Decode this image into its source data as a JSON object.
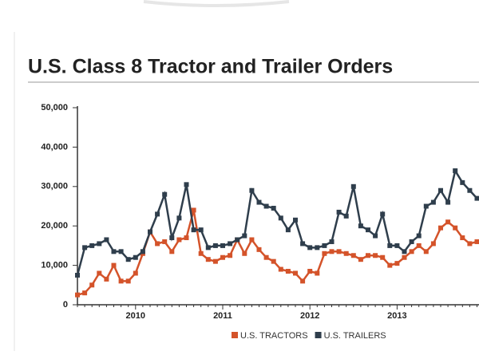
{
  "chart_data": {
    "type": "line",
    "title": "U.S. Class 8 Tractor and Trailer Orders",
    "categories": [
      null,
      null,
      null,
      null,
      null,
      null,
      null,
      null,
      "2010",
      null,
      null,
      null,
      null,
      null,
      null,
      null,
      null,
      null,
      null,
      null,
      "2011",
      null,
      null,
      null,
      null,
      null,
      null,
      null,
      null,
      null,
      null,
      null,
      "2012",
      null,
      null,
      null,
      null,
      null,
      null,
      null,
      null,
      null,
      null,
      null,
      "2013",
      null,
      null,
      null,
      null,
      null,
      null,
      null,
      null,
      null,
      null,
      null
    ],
    "series": [
      {
        "name": "U.S. TRACTORS",
        "color": "#d4532a",
        "values": [
          2500,
          3000,
          5000,
          8000,
          6500,
          10000,
          6000,
          6000,
          8000,
          13000,
          18500,
          15500,
          16000,
          13500,
          16500,
          17000,
          24000,
          13000,
          11500,
          11000,
          12000,
          12500,
          16500,
          13000,
          16500,
          14000,
          12000,
          11000,
          9000,
          8500,
          8000,
          6000,
          8500,
          8000,
          13000,
          13500,
          13500,
          13000,
          12500,
          11500,
          12500,
          12500,
          12000,
          10000,
          10500,
          12000,
          13500,
          15000,
          13500,
          15500,
          19500,
          21000,
          19500,
          17000,
          15500,
          16000
        ]
      },
      {
        "name": "U.S. TRAILERS",
        "color": "#2f3e4c",
        "values": [
          7500,
          14500,
          15000,
          15500,
          16500,
          13500,
          13500,
          11500,
          12000,
          13500,
          18500,
          23000,
          28000,
          17000,
          22000,
          30500,
          19000,
          19000,
          14500,
          15000,
          15000,
          15500,
          16500,
          17500,
          29000,
          26000,
          25000,
          24500,
          22000,
          19000,
          21500,
          15500,
          14500,
          14500,
          15000,
          16000,
          23500,
          22500,
          30000,
          20000,
          19000,
          17500,
          23000,
          15000,
          15000,
          13500,
          16000,
          17500,
          25000,
          26000,
          29000,
          26000,
          34000,
          31000,
          29000,
          27000
        ]
      }
    ],
    "ylim": [
      0,
      50000
    ],
    "yticks": [
      0,
      {
        "value": 10000,
        "label": "10,000"
      },
      {
        "value": 20000,
        "label": "20,000"
      },
      {
        "value": 30000,
        "label": "30,000"
      },
      {
        "value": 40000,
        "label": "40,000"
      },
      {
        "value": 50000,
        "label": "50,000"
      }
    ]
  }
}
